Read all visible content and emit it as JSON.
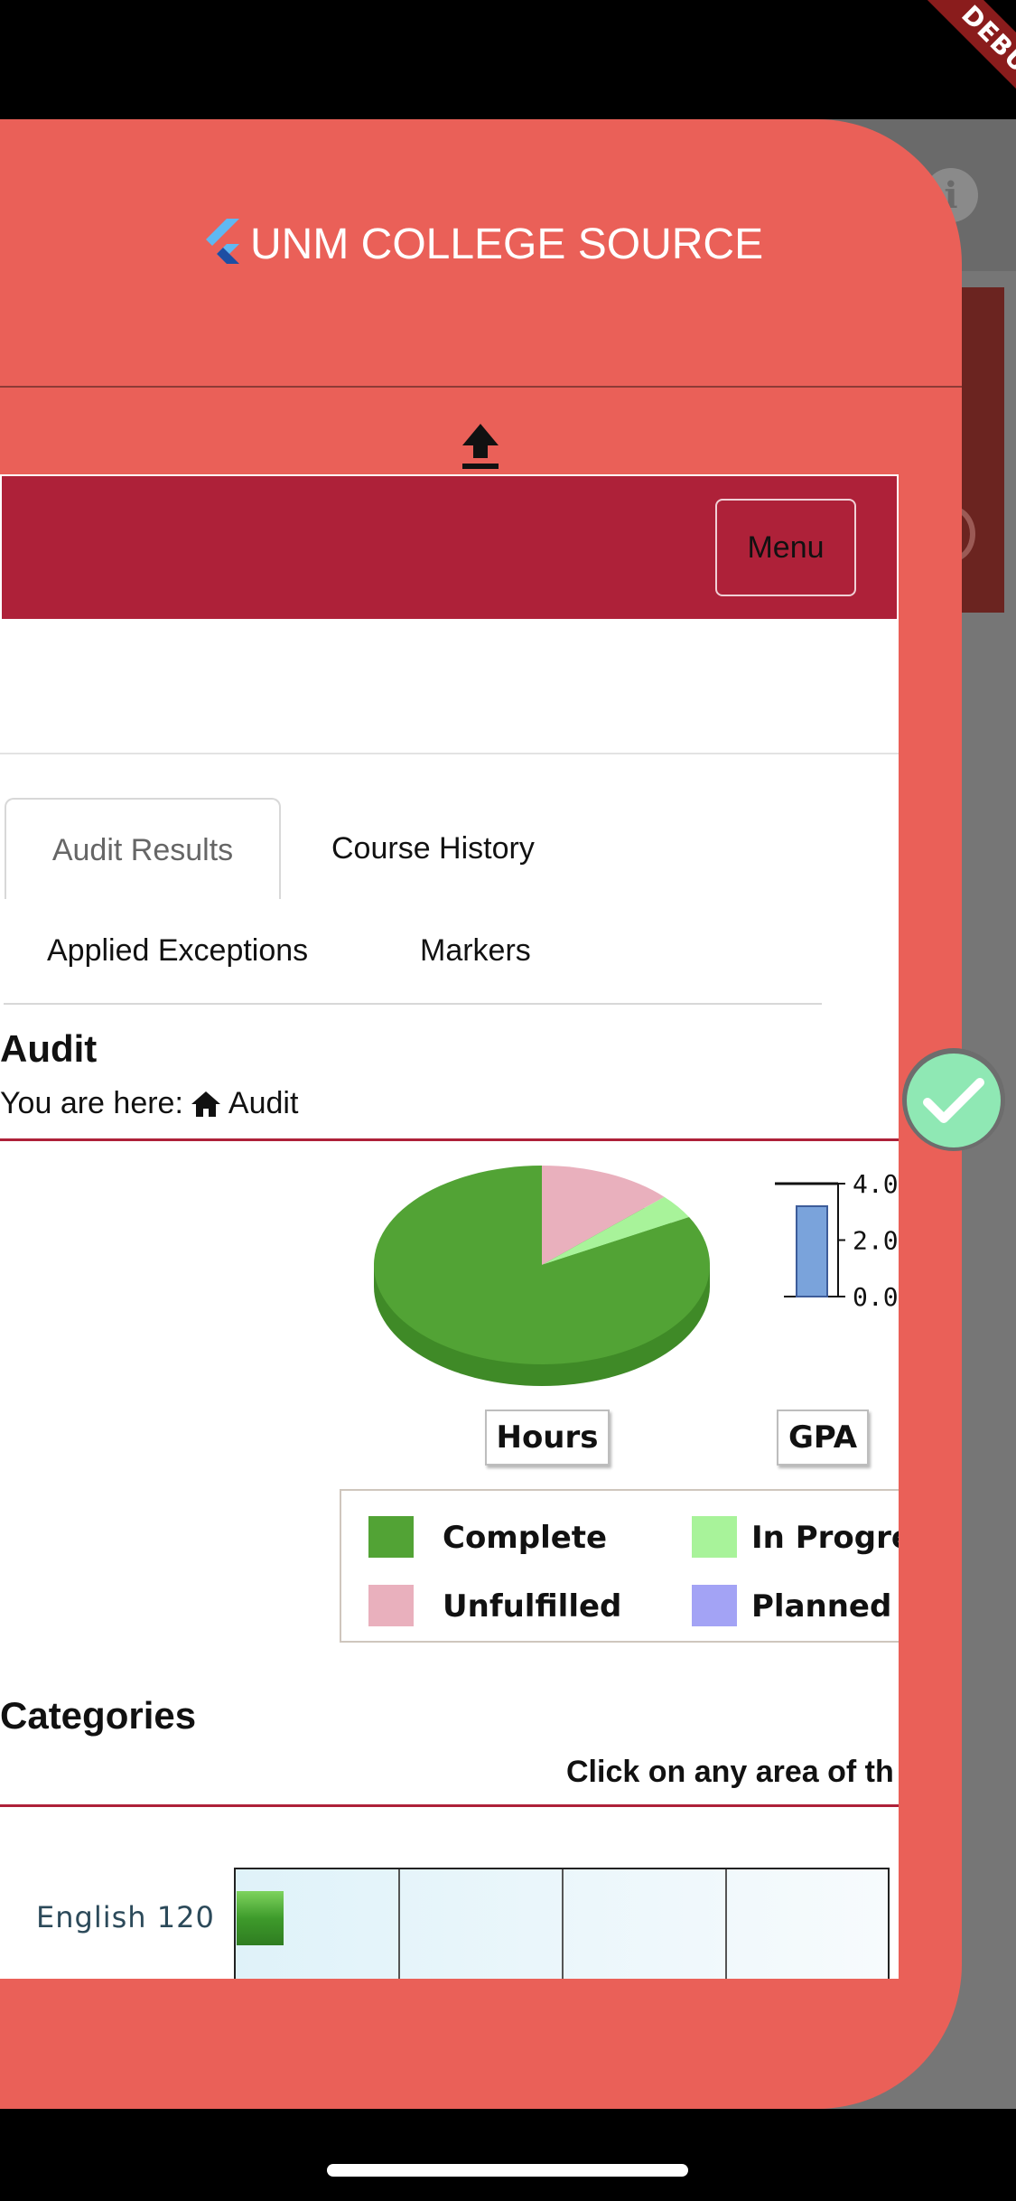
{
  "debug_banner": "DEBUG",
  "drawer": {
    "title": "UNM COLLEGE SOURCE"
  },
  "web": {
    "menu_label": "Menu",
    "tabs": [
      {
        "label": "Audit Results",
        "active": true
      },
      {
        "label": "Course History",
        "active": false
      },
      {
        "label": "Applied Exceptions",
        "active": false
      },
      {
        "label": "Markers",
        "active": false
      }
    ],
    "audit_heading": "Audit",
    "breadcrumb": {
      "prefix": "You are here:",
      "current": "Audit"
    },
    "categories_heading": "Categories",
    "click_note": "Click on any area of th"
  },
  "chart_data": [
    {
      "type": "pie",
      "title": "Hours",
      "slices": [
        {
          "label": "Complete",
          "value": 83,
          "color": "#52a335"
        },
        {
          "label": "Unfulfilled",
          "value": 13,
          "color": "#e9b0bd"
        },
        {
          "label": "In Progress",
          "value": 4,
          "color": "#a8f39a"
        },
        {
          "label": "Planned",
          "value": 0,
          "color": "#a3a3f5"
        }
      ],
      "legend": [
        "Complete",
        "In Progre",
        "Unfulfilled",
        "Planned"
      ],
      "legend_colors": [
        "#52a335",
        "#a8f39a",
        "#e9b0bd",
        "#a3a3f5"
      ]
    },
    {
      "type": "bar",
      "title": "GPA",
      "categories": [
        ""
      ],
      "values": [
        3.2
      ],
      "ylim": [
        0,
        4
      ],
      "ticks": [
        "4.0",
        "2.0",
        "0.0"
      ],
      "color": "#7aa3db"
    },
    {
      "type": "bar",
      "categories": [
        "English 120"
      ],
      "values": [
        0.05
      ],
      "color": "#4caf32"
    }
  ],
  "icons": {
    "upload": "upload-icon",
    "home": "home-icon",
    "info": "info-icon",
    "check": "check-icon"
  }
}
